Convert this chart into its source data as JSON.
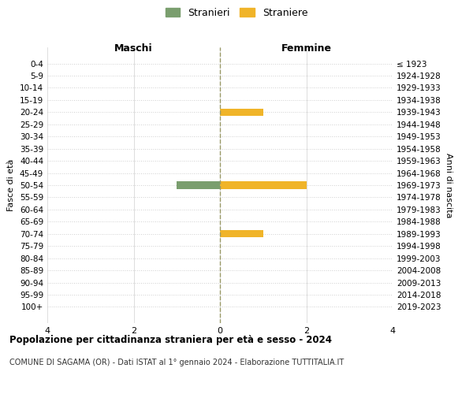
{
  "age_groups": [
    "0-4",
    "5-9",
    "10-14",
    "15-19",
    "20-24",
    "25-29",
    "30-34",
    "35-39",
    "40-44",
    "45-49",
    "50-54",
    "55-59",
    "60-64",
    "65-69",
    "70-74",
    "75-79",
    "80-84",
    "85-89",
    "90-94",
    "95-99",
    "100+"
  ],
  "birth_years": [
    "2019-2023",
    "2014-2018",
    "2009-2013",
    "2004-2008",
    "1999-2003",
    "1994-1998",
    "1989-1993",
    "1984-1988",
    "1979-1983",
    "1974-1978",
    "1969-1973",
    "1964-1968",
    "1959-1963",
    "1954-1958",
    "1949-1953",
    "1944-1948",
    "1939-1943",
    "1934-1938",
    "1929-1933",
    "1924-1928",
    "≤ 1923"
  ],
  "maschi": [
    0,
    0,
    0,
    0,
    0,
    0,
    0,
    0,
    0,
    0,
    1,
    0,
    0,
    0,
    0,
    0,
    0,
    0,
    0,
    0,
    0
  ],
  "femmine": [
    0,
    0,
    0,
    0,
    1,
    0,
    0,
    0,
    0,
    0,
    2,
    0,
    0,
    0,
    1,
    0,
    0,
    0,
    0,
    0,
    0
  ],
  "color_maschi": "#7a9e6e",
  "color_femmine": "#f0b429",
  "xlim": 4,
  "title": "Popolazione per cittadinanza straniera per età e sesso - 2024",
  "subtitle": "COMUNE DI SAGAMA (OR) - Dati ISTAT al 1° gennaio 2024 - Elaborazione TUTTITALIA.IT",
  "ylabel_left": "Fasce di età",
  "ylabel_right": "Anni di nascita",
  "label_maschi": "Maschi",
  "label_femmine": "Femmine",
  "legend_stranieri": "Stranieri",
  "legend_straniere": "Straniere",
  "background_color": "#ffffff",
  "grid_color": "#d0d0d0"
}
